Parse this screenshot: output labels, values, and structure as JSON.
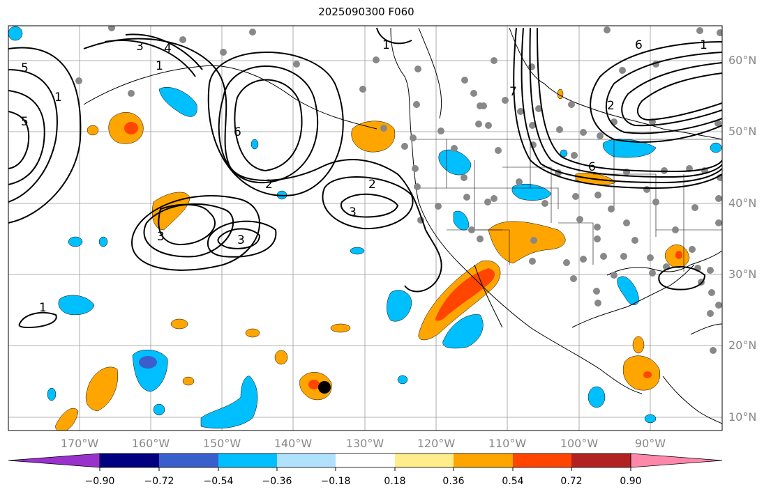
{
  "title": "2025090300 F060",
  "map": {
    "lon_labels": [
      "170°W",
      "160°W",
      "150°W",
      "140°W",
      "130°W",
      "120°W",
      "110°W",
      "100°W",
      "90°W"
    ],
    "lat_labels": [
      "60°N",
      "50°N",
      "40°N",
      "30°N",
      "20°N",
      "10°N"
    ],
    "contour_labels": [
      "5",
      "4",
      "1",
      "3",
      "5",
      "1",
      "6",
      "2",
      "3",
      "2",
      "3",
      "3",
      "1",
      "1",
      "7",
      "6",
      "2",
      "6",
      "1"
    ]
  },
  "colorbar": {
    "ticks": [
      "−0.90",
      "−0.72",
      "−0.54",
      "−0.36",
      "−0.18",
      "0.18",
      "0.36",
      "0.54",
      "0.72",
      "0.90"
    ],
    "colors": [
      "#9932cc",
      "#000080",
      "#3a5fcd",
      "#00bfff",
      "#b0e2ff",
      "#ffffff",
      "#ffec8b",
      "#ffa500",
      "#ff4500",
      "#b22222",
      "#ff88aa"
    ]
  },
  "markers": {
    "storm_center": "black-dot"
  }
}
